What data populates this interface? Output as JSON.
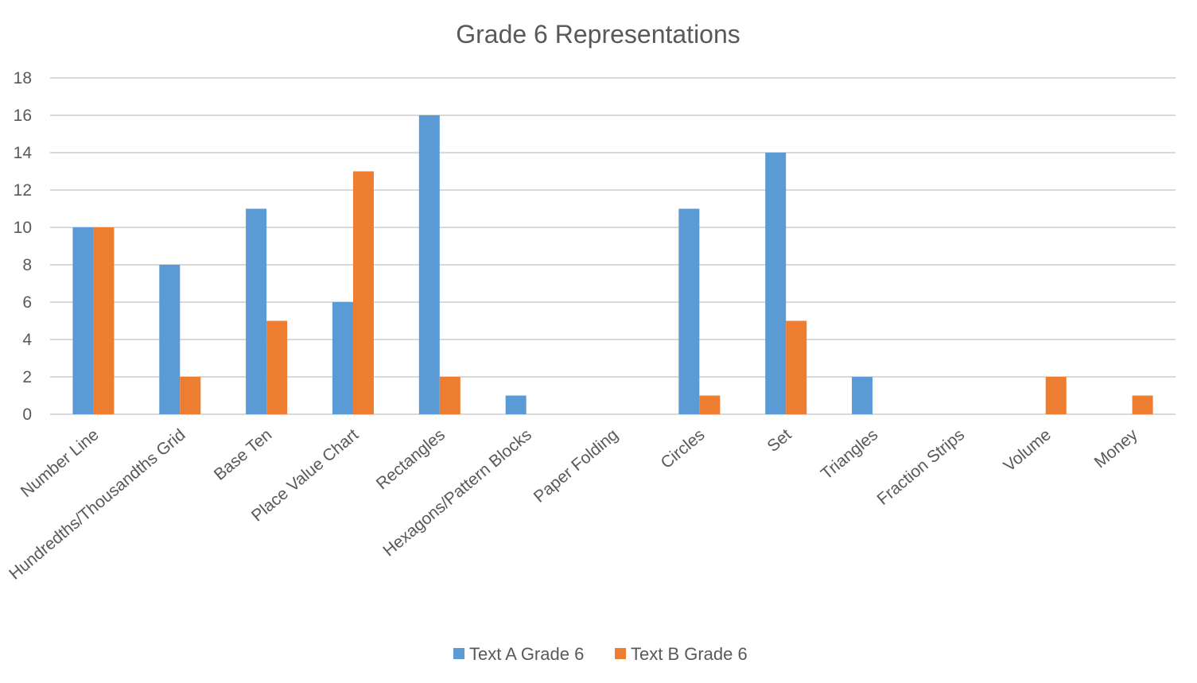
{
  "chart_data": {
    "type": "bar",
    "title": "Grade 6 Representations",
    "xlabel": "",
    "ylabel": "",
    "ylim": [
      0,
      18
    ],
    "ytick_step": 2,
    "grid": true,
    "legend_position": "bottom",
    "categories": [
      "Number Line",
      "Hundredths/Thousandths Grid",
      "Base Ten",
      "Place Value Chart",
      "Rectangles",
      "Hexagons/Pattern Blocks",
      "Paper Folding",
      "Circles",
      "Set",
      "Triangles",
      "Fraction Strips",
      "Volume",
      "Money"
    ],
    "series": [
      {
        "name": "Text A Grade 6",
        "color": "#5b9bd5",
        "values": [
          10,
          8,
          11,
          6,
          16,
          1,
          0,
          11,
          14,
          2,
          0,
          0,
          0
        ]
      },
      {
        "name": "Text B Grade 6",
        "color": "#ed7d31",
        "values": [
          10,
          2,
          5,
          13,
          2,
          0,
          0,
          1,
          5,
          0,
          0,
          2,
          1
        ]
      }
    ]
  }
}
